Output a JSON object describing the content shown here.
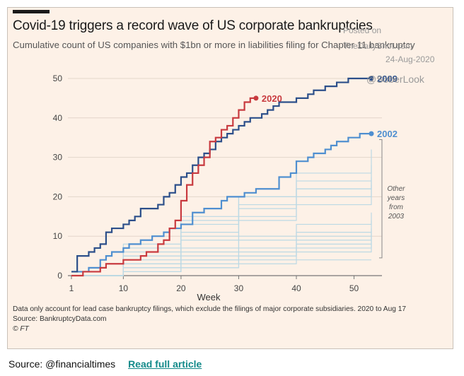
{
  "header": {
    "title": "Covid-19 triggers a record wave of US corporate bankruptcies",
    "subtitle": "Cumulative count of US companies with $1bn or more in liabilities filing for Chapter 11 bankruptcy"
  },
  "watermark": {
    "line1": "Posted on",
    "line2": "TheDailyShot.com",
    "line3": "24-Aug-2020",
    "line4": "@SoberLook"
  },
  "footer": {
    "note": "Data only account for lead case bankruptcy filings, which exclude the filings of major corporate subsidiaries. 2020 to Aug 17",
    "source": "Source: BankruptcyData.com",
    "credit": "© FT"
  },
  "caption": {
    "source": "Source: @financialtimes",
    "link": "Read full article"
  },
  "colors": {
    "s2020": "#c83a3f",
    "s2009": "#2c4f8a",
    "s2002": "#4f8fd0",
    "others": "#bcd9e4",
    "background": "#fdf1e7"
  },
  "chart_data": {
    "type": "line",
    "step": true,
    "xlabel": "Week",
    "ylabel": "",
    "xlim": [
      1,
      53
    ],
    "ylim": [
      0,
      50
    ],
    "xticks": [
      1,
      10,
      20,
      30,
      40,
      50
    ],
    "yticks": [
      0,
      10,
      20,
      30,
      40,
      50
    ],
    "grid": "horizontal",
    "series": [
      {
        "name": "2009",
        "color": "#2c4f8a",
        "emphasis": true,
        "label": "2009",
        "x": [
          1,
          2,
          4,
          5,
          6,
          7,
          8,
          10,
          11,
          12,
          13,
          16,
          17,
          18,
          19,
          20,
          21,
          22,
          23,
          24,
          25,
          26,
          27,
          28,
          29,
          30,
          31,
          32,
          34,
          35,
          36,
          37,
          40,
          42,
          43,
          45,
          46,
          47,
          49,
          50,
          53
        ],
        "y": [
          1,
          5,
          6,
          7,
          8,
          11,
          12,
          13,
          14,
          15,
          17,
          18,
          20,
          21,
          23,
          25,
          26,
          28,
          30,
          31,
          32,
          34,
          35,
          36,
          37,
          38,
          39,
          40,
          41,
          42,
          43,
          44,
          45,
          46,
          47,
          48,
          48,
          49,
          50,
          50,
          50
        ]
      },
      {
        "name": "2020",
        "color": "#c83a3f",
        "emphasis": true,
        "label": "2020",
        "x": [
          1,
          2,
          3,
          4,
          6,
          7,
          10,
          13,
          14,
          16,
          17,
          18,
          19,
          20,
          21,
          22,
          23,
          24,
          25,
          26,
          27,
          28,
          29,
          30,
          31,
          32,
          33
        ],
        "y": [
          0,
          0,
          1,
          1,
          2,
          3,
          4,
          5,
          6,
          8,
          9,
          12,
          14,
          19,
          23,
          26,
          28,
          30,
          34,
          35,
          37,
          38,
          40,
          42,
          44,
          45,
          45
        ]
      },
      {
        "name": "2002",
        "color": "#4f8fd0",
        "emphasis": true,
        "label": "2002",
        "x": [
          1,
          2,
          4,
          6,
          7,
          8,
          10,
          11,
          13,
          15,
          17,
          18,
          20,
          22,
          24,
          27,
          28,
          31,
          33,
          37,
          39,
          40,
          42,
          43,
          45,
          46,
          47,
          48,
          49,
          50,
          51,
          53
        ],
        "y": [
          1,
          1,
          2,
          4,
          5,
          6,
          7,
          8,
          9,
          10,
          11,
          12,
          13,
          16,
          17,
          19,
          20,
          21,
          22,
          25,
          26,
          29,
          30,
          31,
          32,
          33,
          34,
          34,
          35,
          35,
          36,
          36
        ]
      },
      {
        "name": "",
        "color": "#bcd9e4",
        "x": [
          1,
          10,
          20,
          30,
          40,
          53
        ],
        "y": [
          0,
          5,
          10,
          15,
          18,
          22
        ]
      },
      {
        "name": "",
        "color": "#bcd9e4",
        "x": [
          1,
          10,
          20,
          30,
          40,
          53
        ],
        "y": [
          0,
          4,
          9,
          14,
          20,
          25
        ]
      },
      {
        "name": "",
        "color": "#bcd9e4",
        "x": [
          1,
          10,
          20,
          30,
          40,
          53
        ],
        "y": [
          0,
          6,
          13,
          18,
          22,
          28
        ]
      },
      {
        "name": "",
        "color": "#bcd9e4",
        "x": [
          1,
          10,
          20,
          30,
          40,
          53
        ],
        "y": [
          0,
          3,
          7,
          10,
          13,
          16
        ]
      },
      {
        "name": "",
        "color": "#bcd9e4",
        "x": [
          1,
          10,
          20,
          30,
          40,
          53
        ],
        "y": [
          0,
          2,
          4,
          6,
          9,
          12
        ]
      },
      {
        "name": "",
        "color": "#bcd9e4",
        "x": [
          1,
          10,
          20,
          30,
          40,
          53
        ],
        "y": [
          0,
          1,
          3,
          5,
          7,
          10
        ]
      },
      {
        "name": "",
        "color": "#bcd9e4",
        "x": [
          1,
          10,
          20,
          30,
          40,
          53
        ],
        "y": [
          0,
          2,
          5,
          7,
          10,
          14
        ]
      },
      {
        "name": "",
        "color": "#bcd9e4",
        "x": [
          1,
          10,
          20,
          30,
          40,
          53
        ],
        "y": [
          0,
          1,
          2,
          4,
          6,
          8
        ]
      },
      {
        "name": "",
        "color": "#bcd9e4",
        "x": [
          1,
          10,
          20,
          30,
          40,
          53
        ],
        "y": [
          0,
          3,
          6,
          9,
          11,
          11
        ]
      },
      {
        "name": "",
        "color": "#bcd9e4",
        "x": [
          1,
          10,
          20,
          30,
          40,
          53
        ],
        "y": [
          0,
          1,
          2,
          3,
          4,
          4
        ]
      },
      {
        "name": "",
        "color": "#bcd9e4",
        "x": [
          1,
          10,
          20,
          30,
          40,
          53
        ],
        "y": [
          0,
          7,
          14,
          20,
          24,
          24
        ]
      },
      {
        "name": "",
        "color": "#bcd9e4",
        "x": [
          1,
          10,
          20,
          30,
          40,
          53
        ],
        "y": [
          0,
          5,
          11,
          17,
          22,
          23
        ]
      },
      {
        "name": "",
        "color": "#bcd9e4",
        "x": [
          1,
          10,
          20,
          30,
          40,
          53
        ],
        "y": [
          0,
          8,
          15,
          20,
          26,
          32
        ]
      },
      {
        "name": "",
        "color": "#bcd9e4",
        "x": [
          1,
          10,
          20,
          30,
          40,
          53
        ],
        "y": [
          0,
          2,
          4,
          5,
          8,
          9
        ]
      }
    ],
    "annotations": [
      {
        "text": "Other years from 2003",
        "lines": [
          "Other",
          "years",
          "from",
          "2003"
        ]
      }
    ]
  }
}
